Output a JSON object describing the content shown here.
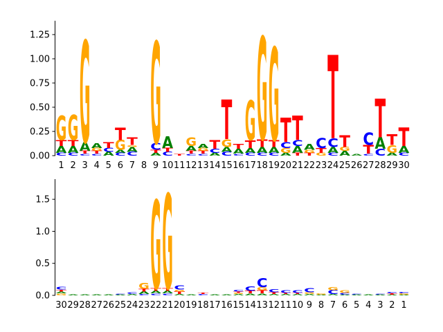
{
  "chart_data": [
    {
      "type": "sequence-logo",
      "panel": "top",
      "ylim": [
        0,
        1.35
      ],
      "yticks": [
        "0.00",
        "0.25",
        "0.50",
        "0.75",
        "1.00",
        "1.25"
      ],
      "ytick_values": [
        0,
        0.25,
        0.5,
        0.75,
        1.0,
        1.25
      ],
      "xtick_labels": [
        "1",
        "2",
        "3",
        "4",
        "5",
        "6",
        "7",
        "8",
        "9",
        "10",
        "11",
        "12",
        "13",
        "14",
        "15",
        "16",
        "17",
        "18",
        "19",
        "20",
        "21",
        "22",
        "23",
        "24",
        "25",
        "26",
        "27",
        "28",
        "29",
        "30"
      ],
      "positions": [
        [
          [
            "C",
            0.03
          ],
          [
            "A",
            0.07
          ],
          [
            "T",
            0.06
          ],
          [
            "G",
            0.25
          ]
        ],
        [
          [
            "C",
            0.03
          ],
          [
            "A",
            0.07
          ],
          [
            "T",
            0.06
          ],
          [
            "G",
            0.26
          ]
        ],
        [
          [
            "C",
            0.02
          ],
          [
            "T",
            0.03
          ],
          [
            "A",
            0.09
          ],
          [
            "G",
            1.05
          ]
        ],
        [
          [
            "C",
            0.02
          ],
          [
            "T",
            0.03
          ],
          [
            "G",
            0.03
          ],
          [
            "A",
            0.05
          ]
        ],
        [
          [
            "A",
            0.04
          ],
          [
            "C",
            0.04
          ],
          [
            "T",
            0.06
          ]
        ],
        [
          [
            "C",
            0.03
          ],
          [
            "A",
            0.03
          ],
          [
            "G",
            0.1
          ],
          [
            "T",
            0.13
          ]
        ],
        [
          [
            "C",
            0.04
          ],
          [
            "A",
            0.05
          ],
          [
            "G",
            0.02
          ],
          [
            "T",
            0.08
          ]
        ],
        [],
        [
          [
            "A",
            0.03
          ],
          [
            "T",
            0.03
          ],
          [
            "C",
            0.07
          ],
          [
            "G",
            1.05
          ]
        ],
        [
          [
            "C",
            0.04
          ],
          [
            "T",
            0.04
          ],
          [
            "A",
            0.12
          ]
        ],
        [
          [
            "T",
            0.02
          ]
        ],
        [
          [
            "C",
            0.02
          ],
          [
            "T",
            0.03
          ],
          [
            "A",
            0.05
          ],
          [
            "G",
            0.09
          ]
        ],
        [
          [
            "C",
            0.02
          ],
          [
            "T",
            0.03
          ],
          [
            "G",
            0.03
          ],
          [
            "A",
            0.04
          ]
        ],
        [
          [
            "A",
            0.03
          ],
          [
            "C",
            0.04
          ],
          [
            "T",
            0.09
          ]
        ],
        [
          [
            "C",
            0.04
          ],
          [
            "A",
            0.05
          ],
          [
            "G",
            0.08
          ],
          [
            "T",
            0.41
          ]
        ],
        [
          [
            "C",
            0.02
          ],
          [
            "A",
            0.05
          ],
          [
            "T",
            0.05
          ]
        ],
        [
          [
            "C",
            0.03
          ],
          [
            "A",
            0.05
          ],
          [
            "T",
            0.08
          ],
          [
            "G",
            0.41
          ]
        ],
        [
          [
            "C",
            0.03
          ],
          [
            "A",
            0.06
          ],
          [
            "T",
            0.08
          ],
          [
            "G",
            1.06
          ]
        ],
        [
          [
            "C",
            0.03
          ],
          [
            "A",
            0.06
          ],
          [
            "T",
            0.07
          ],
          [
            "G",
            0.96
          ]
        ],
        [
          [
            "A",
            0.03
          ],
          [
            "G",
            0.05
          ],
          [
            "C",
            0.06
          ],
          [
            "T",
            0.25
          ]
        ],
        [
          [
            "T",
            0.03
          ],
          [
            "A",
            0.07
          ],
          [
            "C",
            0.06
          ],
          [
            "T",
            0.25
          ]
        ],
        [
          [
            "T",
            0.03
          ],
          [
            "G",
            0.03
          ],
          [
            "A",
            0.06
          ]
        ],
        [
          [
            "G",
            0.03
          ],
          [
            "T",
            0.05
          ],
          [
            "C",
            0.1
          ]
        ],
        [
          [
            "C",
            0.03
          ],
          [
            "A",
            0.06
          ],
          [
            "C",
            0.09
          ],
          [
            "T",
            0.86
          ]
        ],
        [
          [
            "A",
            0.05
          ],
          [
            "G",
            0.04
          ],
          [
            "T",
            0.12
          ]
        ],
        [
          [
            "A",
            0.02
          ]
        ],
        [
          [
            "C",
            0.02
          ],
          [
            "T",
            0.09
          ],
          [
            "C",
            0.13
          ]
        ],
        [
          [
            "C",
            0.07
          ],
          [
            "A",
            0.12
          ],
          [
            "T",
            0.4
          ]
        ],
        [
          [
            "A",
            0.03
          ],
          [
            "G",
            0.08
          ],
          [
            "T",
            0.11
          ]
        ],
        [
          [
            "C",
            0.03
          ],
          [
            "A",
            0.07
          ],
          [
            "T",
            0.19
          ]
        ]
      ]
    },
    {
      "type": "sequence-logo",
      "panel": "bottom",
      "ylim": [
        0,
        1.75
      ],
      "yticks": [
        "0.0",
        "0.5",
        "1.0",
        "1.5"
      ],
      "ytick_values": [
        0,
        0.5,
        1.0,
        1.5
      ],
      "xtick_labels": [
        "30",
        "29",
        "28",
        "27",
        "26",
        "25",
        "24",
        "23",
        "22",
        "21",
        "20",
        "19",
        "18",
        "17",
        "16",
        "15",
        "14",
        "13",
        "12",
        "11",
        "10",
        "9",
        "8",
        "7",
        "6",
        "5",
        "4",
        "3",
        "2",
        "1"
      ],
      "positions": [
        [
          [
            "G",
            0.03
          ],
          [
            "A",
            0.03
          ],
          [
            "T",
            0.03
          ],
          [
            "C",
            0.04
          ]
        ],
        [
          [
            "A",
            0.01
          ]
        ],
        [
          [
            "A",
            0.01
          ]
        ],
        [
          [
            "A",
            0.01
          ]
        ],
        [
          [
            "A",
            0.01
          ]
        ],
        [
          [
            "A",
            0.01
          ],
          [
            "C",
            0.01
          ]
        ],
        [
          [
            "A",
            0.02
          ],
          [
            "C",
            0.03
          ]
        ],
        [
          [
            "C",
            0.02
          ],
          [
            "A",
            0.04
          ],
          [
            "T",
            0.04
          ],
          [
            "G",
            0.09
          ]
        ],
        [
          [
            "C",
            0.03
          ],
          [
            "A",
            0.04
          ],
          [
            "T",
            0.04
          ],
          [
            "G",
            1.38
          ]
        ],
        [
          [
            "C",
            0.03
          ],
          [
            "A",
            0.04
          ],
          [
            "T",
            0.04
          ],
          [
            "G",
            1.48
          ]
        ],
        [
          [
            "A",
            0.02
          ],
          [
            "T",
            0.04
          ],
          [
            "G",
            0.03
          ],
          [
            "C",
            0.06
          ]
        ],
        [
          [
            "A",
            0.01
          ]
        ],
        [
          [
            "C",
            0.02
          ],
          [
            "T",
            0.02
          ]
        ],
        [
          [
            "A",
            0.01
          ]
        ],
        [
          [
            "A",
            0.01
          ]
        ],
        [
          [
            "A",
            0.02
          ],
          [
            "G",
            0.02
          ],
          [
            "T",
            0.02
          ],
          [
            "C",
            0.03
          ]
        ],
        [
          [
            "A",
            0.03
          ],
          [
            "T",
            0.04
          ],
          [
            "C",
            0.07
          ]
        ],
        [
          [
            "A",
            0.03
          ],
          [
            "T",
            0.05
          ],
          [
            "G",
            0.05
          ],
          [
            "C",
            0.14
          ]
        ],
        [
          [
            "A",
            0.02
          ],
          [
            "T",
            0.03
          ],
          [
            "C",
            0.05
          ]
        ],
        [
          [
            "A",
            0.02
          ],
          [
            "T",
            0.02
          ],
          [
            "C",
            0.04
          ]
        ],
        [
          [
            "A",
            0.02
          ],
          [
            "T",
            0.02
          ],
          [
            "C",
            0.04
          ]
        ],
        [
          [
            "A",
            0.02
          ],
          [
            "G",
            0.03
          ],
          [
            "C",
            0.06
          ]
        ],
        [
          [
            "A",
            0.01
          ],
          [
            "G",
            0.02
          ]
        ],
        [
          [
            "A",
            0.02
          ],
          [
            "C",
            0.06
          ],
          [
            "G",
            0.05
          ]
        ],
        [
          [
            "A",
            0.01
          ],
          [
            "C",
            0.03
          ],
          [
            "G",
            0.04
          ]
        ],
        [
          [
            "A",
            0.01
          ],
          [
            "C",
            0.01
          ]
        ],
        [
          [
            "A",
            0.01
          ]
        ],
        [
          [
            "A",
            0.01
          ],
          [
            "C",
            0.01
          ]
        ],
        [
          [
            "A",
            0.01
          ],
          [
            "T",
            0.02
          ],
          [
            "C",
            0.02
          ]
        ],
        [
          [
            "A",
            0.01
          ],
          [
            "G",
            0.02
          ],
          [
            "C",
            0.02
          ]
        ]
      ]
    }
  ],
  "letter_colors": {
    "A": "#008000",
    "C": "#0000ff",
    "G": "#ffa500",
    "T": "#ff0000"
  }
}
